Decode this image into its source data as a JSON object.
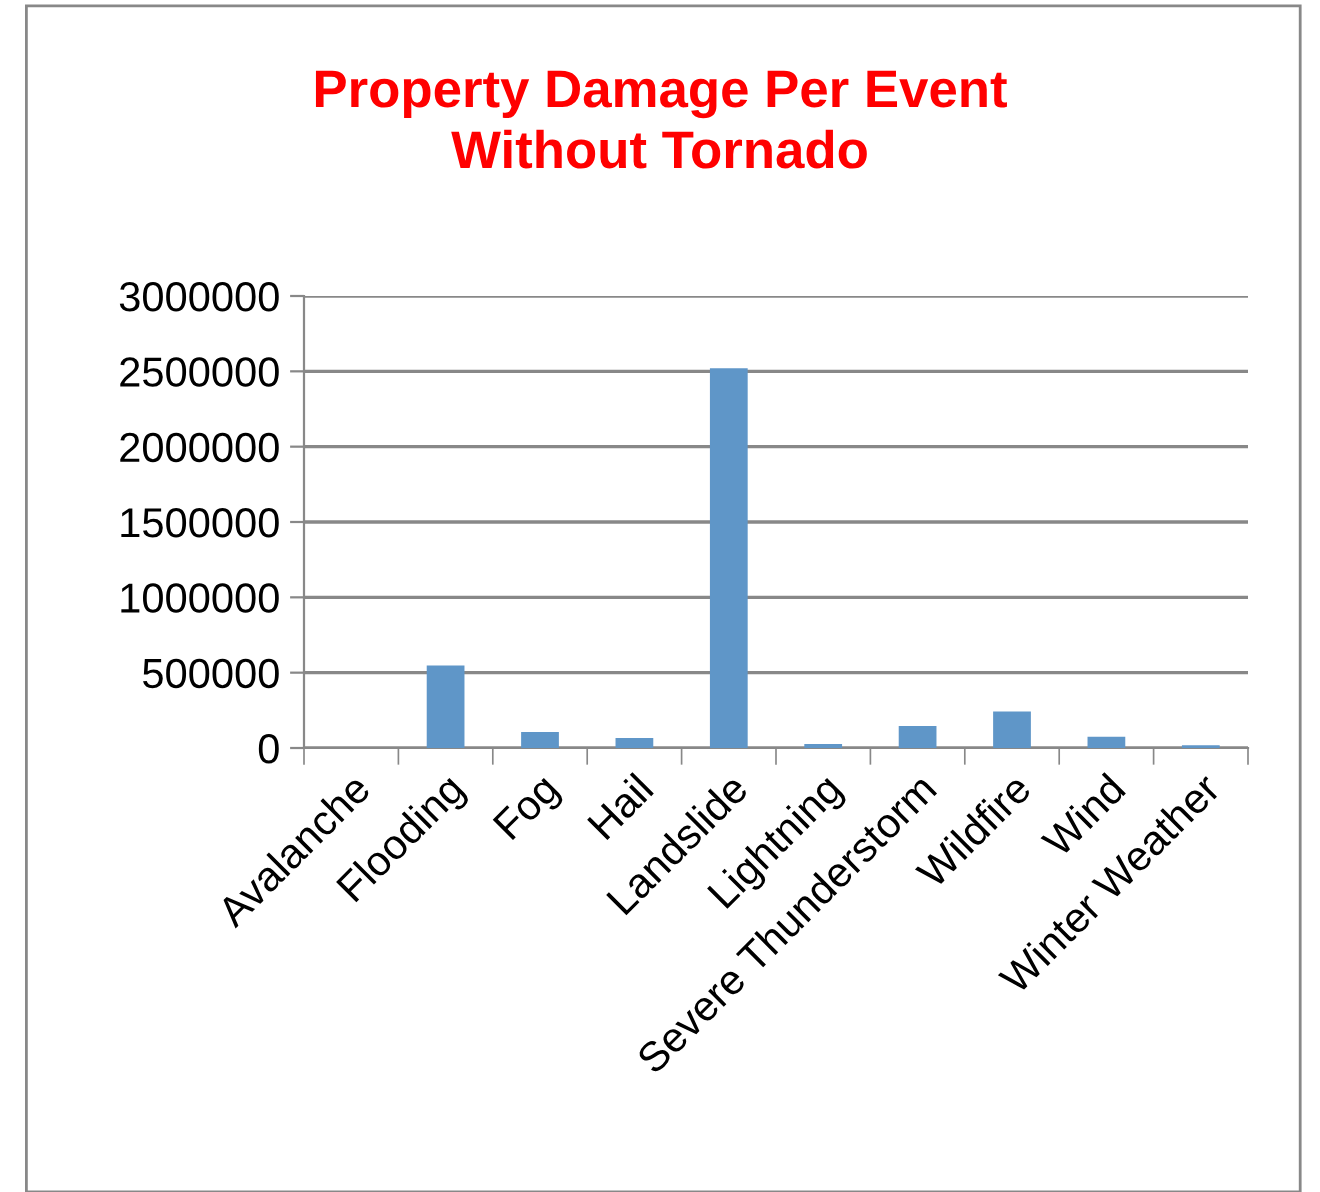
{
  "chart_data": {
    "type": "bar",
    "title": "Property Damage Per Event\nWithout Tornado",
    "categories": [
      "Avalanche",
      "Flooding",
      "Fog",
      "Hail",
      "Landslide",
      "Lightning",
      "Severe Thunderstorm",
      "Wildfire",
      "Wind",
      "Winter Weather"
    ],
    "values": [
      0,
      548000,
      106000,
      66000,
      2520000,
      27000,
      146000,
      243000,
      75000,
      18000
    ],
    "color": "#5f96c8",
    "ylim": [
      0,
      3000000
    ],
    "yticks": [
      0,
      500000,
      1000000,
      1500000,
      2000000,
      2500000,
      3000000
    ],
    "grid": "y"
  }
}
